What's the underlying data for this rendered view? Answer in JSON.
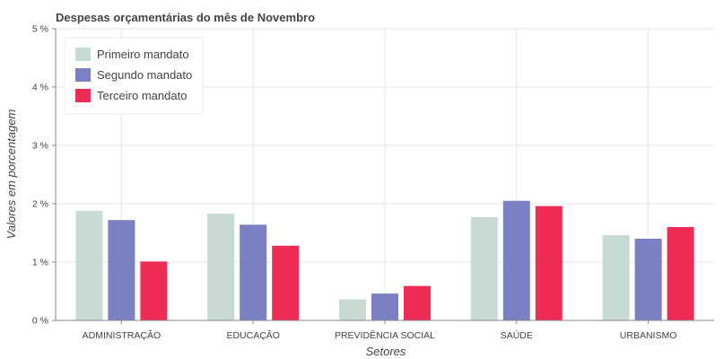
{
  "chart_data": {
    "type": "bar",
    "title": "Despesas orçamentárias do mês de Novembro",
    "xlabel": "Setores",
    "ylabel": "Valores em porcentagem",
    "categories": [
      "ADMINISTRAÇÃO",
      "EDUCAÇÃO",
      "PREVIDÊNCIA SOCIAL",
      "SAÚDE",
      "URBANISMO"
    ],
    "series": [
      {
        "name": "Primeiro mandato",
        "color": "#c7dbd2",
        "values": [
          1.88,
          1.83,
          0.36,
          1.77,
          1.46
        ]
      },
      {
        "name": "Segundo mandato",
        "color": "#7a80c2",
        "values": [
          1.72,
          1.64,
          0.46,
          2.05,
          1.4
        ]
      },
      {
        "name": "Terceiro mandato",
        "color": "#ee2c55",
        "values": [
          1.01,
          1.28,
          0.59,
          1.96,
          1.6
        ]
      }
    ],
    "ylim": [
      0,
      5
    ],
    "yticks": [
      0,
      1,
      2,
      3,
      4,
      5
    ],
    "ytick_labels": [
      "0 %",
      "1 %",
      "2 %",
      "3 %",
      "4 %",
      "5 %"
    ],
    "grid": true,
    "legend_position": "top-left"
  }
}
